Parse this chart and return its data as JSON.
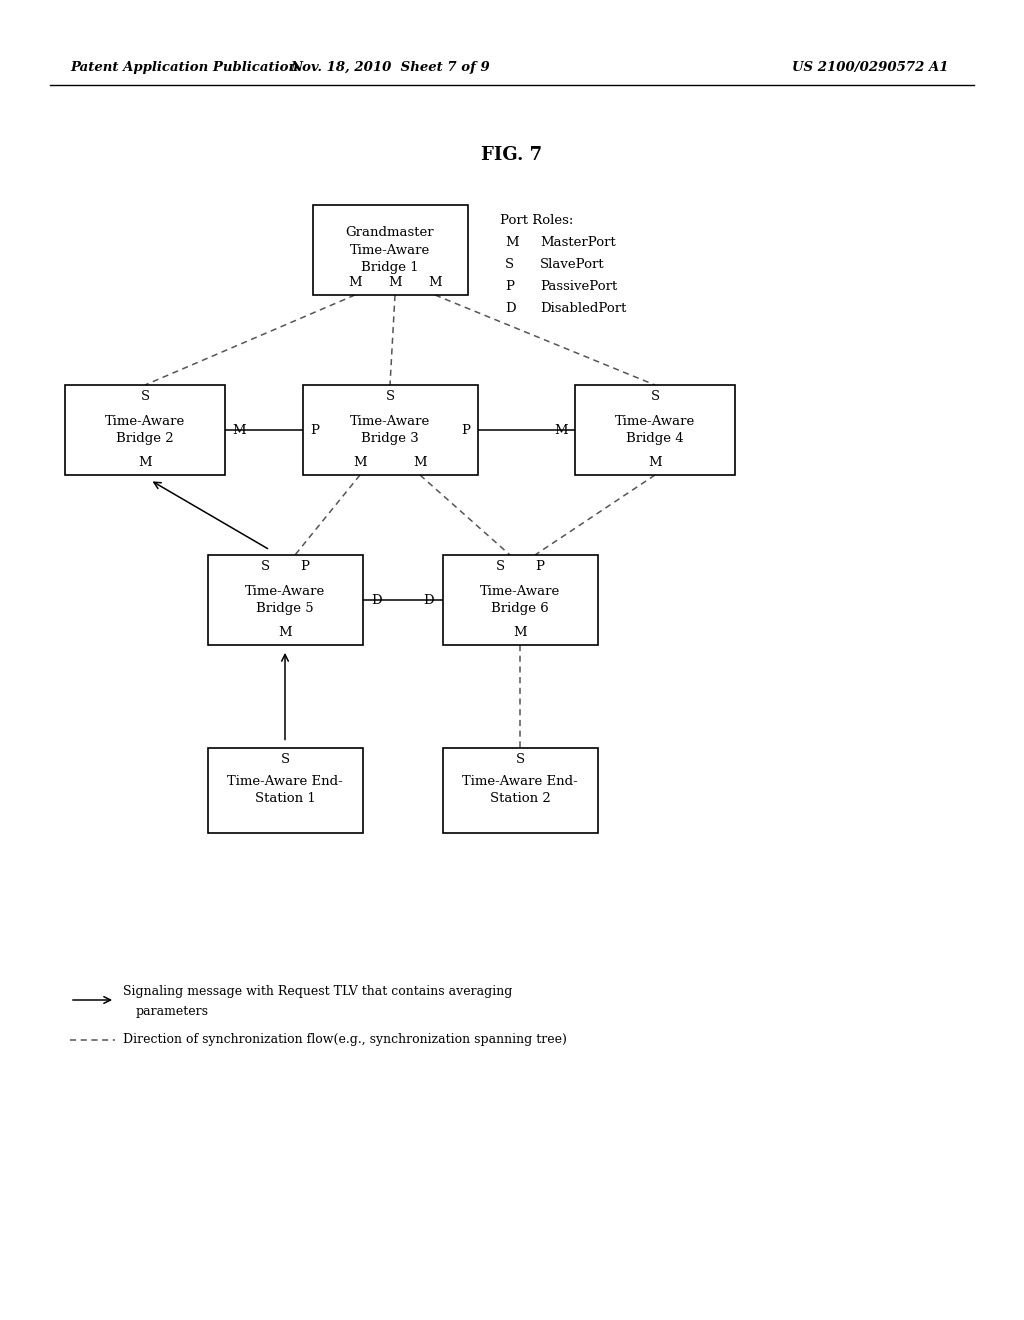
{
  "title": "FIG. 7",
  "header_left": "Patent Application Publication",
  "header_mid": "Nov. 18, 2010  Sheet 7 of 9",
  "header_right": "US 2100/0290572 A1",
  "port_roles_title": "Port Roles:",
  "port_roles": [
    [
      "M",
      "MasterPort"
    ],
    [
      "S",
      "SlavePort"
    ],
    [
      "P",
      "PassivePort"
    ],
    [
      "D",
      "DisabledPort"
    ]
  ],
  "legend_solid_text1": "Signaling message with Request TLV that contains averaging",
  "legend_solid_text2": "parameters",
  "legend_dashed_text": "Direction of synchronization flow(e.g., synchronization spanning tree)",
  "bg_color": "#ffffff"
}
